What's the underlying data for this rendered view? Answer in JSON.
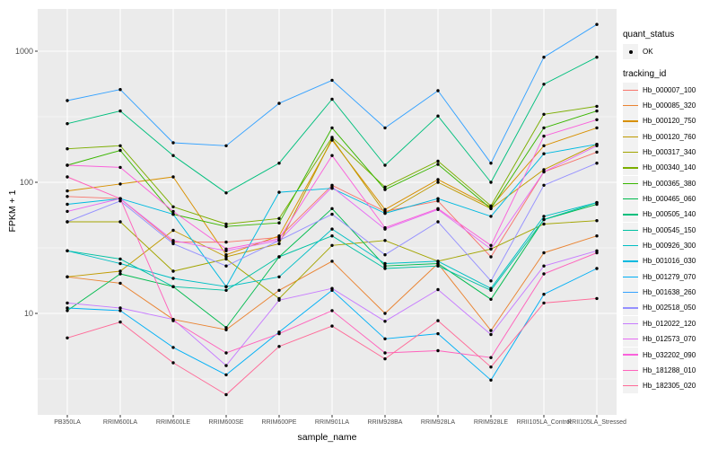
{
  "chart_data": {
    "type": "line",
    "title": "",
    "xlabel": "sample_name",
    "ylabel": "FPKM + 1",
    "y_scale": "log10",
    "ylim": [
      1.7,
      2100
    ],
    "grid": "on",
    "legend_position": "right",
    "panel_bg": "#EBEBEB",
    "grid_color": "#FFFFFF",
    "point_color": "#000000",
    "y_ticks": [
      {
        "value": 10,
        "label": "10"
      },
      {
        "value": 100,
        "label": "100"
      },
      {
        "value": 1000,
        "label": "1000"
      }
    ],
    "y_minor_gridlines": [
      3.162,
      31.623,
      316.23
    ],
    "categories": [
      "PB350LA",
      "RRIM600LA",
      "RRIM600LE",
      "RRIM600SE",
      "RRIM600PE",
      "RRIM901LA",
      "RRIM928BA",
      "RRIM928LA",
      "RRIM928LE",
      "RRII105LA_Control",
      "RRII105LA_Stressed"
    ],
    "legend": {
      "quant_status_title": "quant_status",
      "quant_items": [
        {
          "label": "OK",
          "marker": "black-point"
        }
      ],
      "tracking_id_title": "tracking_id"
    },
    "series": [
      {
        "name": "Hb_000007_100",
        "color": "#F8766D",
        "values": [
          78,
          75,
          35,
          35,
          38,
          95,
          60,
          72,
          27,
          120,
          170
        ]
      },
      {
        "name": "Hb_000085_320",
        "color": "#EA8331",
        "values": [
          19,
          17,
          9,
          7.5,
          15,
          25,
          10,
          24,
          7.4,
          29,
          39
        ]
      },
      {
        "name": "Hb_000120_750",
        "color": "#D89000",
        "values": [
          86,
          97,
          110,
          28,
          39,
          210,
          62,
          105,
          65,
          190,
          260
        ]
      },
      {
        "name": "Hb_000120_760",
        "color": "#C09B00",
        "values": [
          19,
          21,
          43,
          27,
          34,
          215,
          58,
          100,
          63,
          125,
          195
        ]
      },
      {
        "name": "Hb_000317_340",
        "color": "#A3A500",
        "values": [
          50,
          50,
          21,
          26,
          13,
          33,
          36,
          25,
          31,
          48,
          51
        ]
      },
      {
        "name": "Hb_000340_140",
        "color": "#7CAE00",
        "values": [
          180,
          190,
          65,
          48,
          53,
          220,
          92,
          145,
          66,
          330,
          380
        ]
      },
      {
        "name": "Hb_000365_380",
        "color": "#39B600",
        "values": [
          135,
          175,
          57,
          46,
          49,
          260,
          88,
          137,
          63,
          260,
          350
        ]
      },
      {
        "name": "Hb_000465_060",
        "color": "#00BB4E",
        "values": [
          10.5,
          20,
          16,
          7.8,
          27,
          63,
          23,
          24,
          12.8,
          52,
          68
        ]
      },
      {
        "name": "Hb_000505_140",
        "color": "#00BF7D",
        "values": [
          280,
          350,
          160,
          83,
          140,
          430,
          135,
          320,
          100,
          560,
          900
        ]
      },
      {
        "name": "Hb_000545_150",
        "color": "#00C1A3",
        "values": [
          30,
          26,
          16,
          15,
          27,
          39,
          22,
          23,
          15,
          52,
          70
        ]
      },
      {
        "name": "Hb_000926_300",
        "color": "#00BFC4",
        "values": [
          30,
          24,
          18.5,
          16,
          19,
          44,
          24,
          25,
          15.5,
          55,
          70
        ]
      },
      {
        "name": "Hb_001016_030",
        "color": "#00BAE0",
        "values": [
          68,
          75,
          57,
          16,
          84,
          90,
          58,
          75,
          55,
          165,
          195
        ]
      },
      {
        "name": "Hb_001279_070",
        "color": "#00B0F6",
        "values": [
          11,
          10.5,
          5.5,
          3.4,
          7.2,
          15,
          6.4,
          7,
          3.1,
          14,
          22
        ]
      },
      {
        "name": "Hb_001638_260",
        "color": "#35A2FF",
        "values": [
          420,
          510,
          200,
          190,
          400,
          600,
          260,
          500,
          140,
          900,
          1600
        ]
      },
      {
        "name": "Hb_002518_050",
        "color": "#9590FF",
        "values": [
          50,
          72,
          34,
          23,
          36,
          57,
          28,
          50,
          17.7,
          95,
          140
        ]
      },
      {
        "name": "Hb_012022_120",
        "color": "#C77CFF",
        "values": [
          12,
          11,
          9,
          4,
          12.6,
          15.5,
          8.7,
          15.2,
          6.9,
          23,
          30
        ]
      },
      {
        "name": "Hb_012573_070",
        "color": "#E76BF3",
        "values": [
          60,
          75,
          36,
          30,
          36,
          92,
          44,
          62,
          31,
          120,
          190
        ]
      },
      {
        "name": "Hb_032202_090",
        "color": "#FA62DB",
        "values": [
          135,
          130,
          60,
          31,
          37,
          160,
          45,
          63,
          33,
          225,
          300
        ]
      },
      {
        "name": "Hb_181288_010",
        "color": "#FF62BC",
        "values": [
          110,
          75,
          8.8,
          5,
          7,
          10.5,
          5,
          5.2,
          4.6,
          20,
          29
        ]
      },
      {
        "name": "Hb_182305_020",
        "color": "#FF6A98",
        "values": [
          6.5,
          8.6,
          4.2,
          2.4,
          5.6,
          8,
          4.5,
          8.8,
          3.9,
          12,
          13
        ]
      }
    ]
  }
}
